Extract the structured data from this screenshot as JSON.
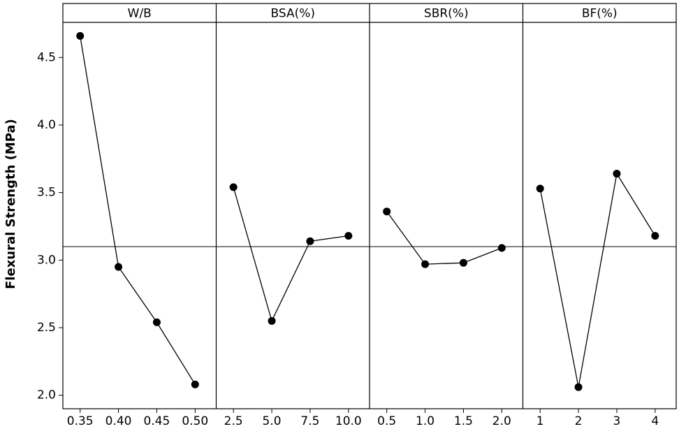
{
  "chart_data": {
    "type": "line",
    "y_label": "Flexural Strength (MPa)",
    "ylim": [
      1.9,
      4.76
    ],
    "yticks": [
      {
        "value": 2,
        "label": "2.0"
      },
      2.5,
      {
        "value": 3,
        "label": "3.0"
      },
      3.5,
      {
        "value": 4,
        "label": "4.0"
      },
      4.5
    ],
    "reference_line": 3.1,
    "color": "#000000",
    "panels": [
      {
        "title": "W/B",
        "categories": [
          "0.35",
          "0.40",
          "0.45",
          "0.50"
        ],
        "values": [
          4.66,
          2.95,
          2.54,
          2.08
        ]
      },
      {
        "title": "BSA(%)",
        "categories": [
          "2.5",
          "5.0",
          "7.5",
          "10.0"
        ],
        "values": [
          3.54,
          2.55,
          3.14,
          3.18
        ]
      },
      {
        "title": "SBR(%)",
        "categories": [
          "0.5",
          "1.0",
          "1.5",
          "2.0"
        ],
        "values": [
          3.36,
          2.97,
          2.98,
          3.09
        ]
      },
      {
        "title": "BF(%)",
        "categories": [
          "1",
          "2",
          "3",
          "4"
        ],
        "values": [
          3.53,
          2.06,
          3.64,
          3.18
        ]
      }
    ]
  }
}
